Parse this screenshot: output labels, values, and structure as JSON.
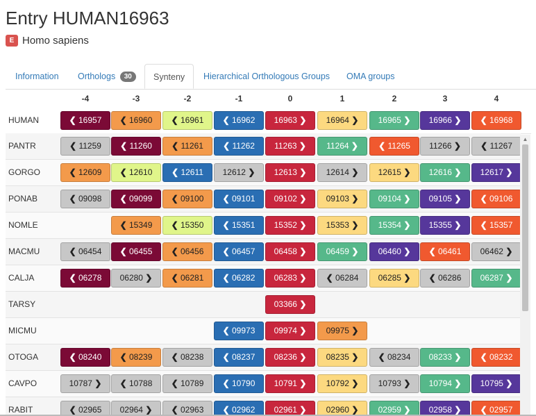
{
  "entry": {
    "title": "Entry HUMAN16963",
    "species_badge": "E",
    "species": "Homo sapiens"
  },
  "tabs": [
    {
      "label": "Information"
    },
    {
      "label": "Orthologs",
      "count": "30"
    },
    {
      "label": "Synteny"
    },
    {
      "label": "Hierarchical Orthologous Groups"
    },
    {
      "label": "OMA groups"
    }
  ],
  "columns": [
    "-4",
    "-3",
    "-2",
    "-1",
    "0",
    "1",
    "2",
    "3",
    "4"
  ],
  "icons": {
    "left": "chevron-left-icon",
    "right": "chevron-right-icon"
  },
  "colors": {
    "wine": "#7b0a36",
    "orange": "#f39a4b",
    "lime": "#e0f58a",
    "blue": "#2a6eb3",
    "red": "#c8263d",
    "yellow": "#fcd980",
    "green": "#56b88a",
    "purple": "#56379b",
    "vermil": "#f0592f",
    "gray": "#c7c7c7"
  },
  "rows": [
    {
      "species": "HUMAN",
      "genes": [
        {
          "label": "16957",
          "dir": "L",
          "color": "wine"
        },
        {
          "label": "16960",
          "dir": "L",
          "color": "orange"
        },
        {
          "label": "16961",
          "dir": "L",
          "color": "lime"
        },
        {
          "label": "16962",
          "dir": "L",
          "color": "blue"
        },
        {
          "label": "16963",
          "dir": "R",
          "color": "red"
        },
        {
          "label": "16964",
          "dir": "R",
          "color": "yellow"
        },
        {
          "label": "16965",
          "dir": "R",
          "color": "green"
        },
        {
          "label": "16966",
          "dir": "R",
          "color": "purple"
        },
        {
          "label": "16968",
          "dir": "L",
          "color": "vermil"
        }
      ]
    },
    {
      "species": "PANTR",
      "genes": [
        {
          "label": "11259",
          "dir": "L",
          "color": "gray"
        },
        {
          "label": "11260",
          "dir": "L",
          "color": "wine"
        },
        {
          "label": "11261",
          "dir": "L",
          "color": "orange"
        },
        {
          "label": "11262",
          "dir": "L",
          "color": "blue"
        },
        {
          "label": "11263",
          "dir": "R",
          "color": "red"
        },
        {
          "label": "11264",
          "dir": "R",
          "color": "green"
        },
        {
          "label": "11265",
          "dir": "L",
          "color": "vermil"
        },
        {
          "label": "11266",
          "dir": "R",
          "color": "gray"
        },
        {
          "label": "11267",
          "dir": "L",
          "color": "gray"
        }
      ]
    },
    {
      "species": "GORGO",
      "genes": [
        {
          "label": "12609",
          "dir": "L",
          "color": "orange"
        },
        {
          "label": "12610",
          "dir": "L",
          "color": "lime"
        },
        {
          "label": "12611",
          "dir": "L",
          "color": "blue"
        },
        {
          "label": "12612",
          "dir": "R",
          "color": "gray"
        },
        {
          "label": "12613",
          "dir": "R",
          "color": "red"
        },
        {
          "label": "12614",
          "dir": "R",
          "color": "gray"
        },
        {
          "label": "12615",
          "dir": "R",
          "color": "yellow"
        },
        {
          "label": "12616",
          "dir": "R",
          "color": "green"
        },
        {
          "label": "12617",
          "dir": "R",
          "color": "purple"
        }
      ]
    },
    {
      "species": "PONAB",
      "genes": [
        {
          "label": "09098",
          "dir": "L",
          "color": "gray"
        },
        {
          "label": "09099",
          "dir": "L",
          "color": "wine"
        },
        {
          "label": "09100",
          "dir": "L",
          "color": "orange"
        },
        {
          "label": "09101",
          "dir": "L",
          "color": "blue"
        },
        {
          "label": "09102",
          "dir": "R",
          "color": "red"
        },
        {
          "label": "09103",
          "dir": "R",
          "color": "yellow"
        },
        {
          "label": "09104",
          "dir": "R",
          "color": "green"
        },
        {
          "label": "09105",
          "dir": "R",
          "color": "purple"
        },
        {
          "label": "09106",
          "dir": "L",
          "color": "vermil"
        }
      ]
    },
    {
      "species": "NOMLE",
      "genes": [
        null,
        {
          "label": "15349",
          "dir": "L",
          "color": "orange"
        },
        {
          "label": "15350",
          "dir": "L",
          "color": "lime"
        },
        {
          "label": "15351",
          "dir": "L",
          "color": "blue"
        },
        {
          "label": "15352",
          "dir": "R",
          "color": "red"
        },
        {
          "label": "15353",
          "dir": "R",
          "color": "yellow"
        },
        {
          "label": "15354",
          "dir": "R",
          "color": "green"
        },
        {
          "label": "15355",
          "dir": "R",
          "color": "purple"
        },
        {
          "label": "15357",
          "dir": "L",
          "color": "vermil"
        }
      ]
    },
    {
      "species": "MACMU",
      "genes": [
        {
          "label": "06454",
          "dir": "L",
          "color": "gray"
        },
        {
          "label": "06455",
          "dir": "L",
          "color": "wine"
        },
        {
          "label": "06456",
          "dir": "L",
          "color": "orange"
        },
        {
          "label": "06457",
          "dir": "L",
          "color": "blue"
        },
        {
          "label": "06458",
          "dir": "R",
          "color": "red"
        },
        {
          "label": "06459",
          "dir": "R",
          "color": "green"
        },
        {
          "label": "06460",
          "dir": "R",
          "color": "purple"
        },
        {
          "label": "06461",
          "dir": "L",
          "color": "vermil"
        },
        {
          "label": "06462",
          "dir": "R",
          "color": "gray"
        }
      ]
    },
    {
      "species": "CALJA",
      "genes": [
        {
          "label": "06278",
          "dir": "L",
          "color": "wine"
        },
        {
          "label": "06280",
          "dir": "R",
          "color": "gray"
        },
        {
          "label": "06281",
          "dir": "L",
          "color": "orange"
        },
        {
          "label": "06282",
          "dir": "L",
          "color": "blue"
        },
        {
          "label": "06283",
          "dir": "R",
          "color": "red"
        },
        {
          "label": "06284",
          "dir": "L",
          "color": "gray"
        },
        {
          "label": "06285",
          "dir": "R",
          "color": "yellow"
        },
        {
          "label": "06286",
          "dir": "L",
          "color": "gray"
        },
        {
          "label": "06287",
          "dir": "R",
          "color": "green"
        }
      ]
    },
    {
      "species": "TARSY",
      "genes": [
        null,
        null,
        null,
        null,
        {
          "label": "03366",
          "dir": "R",
          "color": "red"
        },
        null,
        null,
        null,
        null
      ]
    },
    {
      "species": "MICMU",
      "genes": [
        null,
        null,
        null,
        {
          "label": "09973",
          "dir": "L",
          "color": "blue"
        },
        {
          "label": "09974",
          "dir": "R",
          "color": "red"
        },
        {
          "label": "09975",
          "dir": "R",
          "color": "orange"
        },
        null,
        null,
        null
      ]
    },
    {
      "species": "OTOGA",
      "genes": [
        {
          "label": "08240",
          "dir": "L",
          "color": "wine"
        },
        {
          "label": "08239",
          "dir": "L",
          "color": "orange"
        },
        {
          "label": "08238",
          "dir": "L",
          "color": "gray"
        },
        {
          "label": "08237",
          "dir": "L",
          "color": "blue"
        },
        {
          "label": "08236",
          "dir": "R",
          "color": "red"
        },
        {
          "label": "08235",
          "dir": "R",
          "color": "yellow"
        },
        {
          "label": "08234",
          "dir": "L",
          "color": "gray"
        },
        {
          "label": "08233",
          "dir": "R",
          "color": "green"
        },
        {
          "label": "08232",
          "dir": "L",
          "color": "vermil"
        }
      ]
    },
    {
      "species": "CAVPO",
      "genes": [
        {
          "label": "10787",
          "dir": "R",
          "color": "gray"
        },
        {
          "label": "10788",
          "dir": "L",
          "color": "gray"
        },
        {
          "label": "10789",
          "dir": "L",
          "color": "gray"
        },
        {
          "label": "10790",
          "dir": "L",
          "color": "blue"
        },
        {
          "label": "10791",
          "dir": "R",
          "color": "red"
        },
        {
          "label": "10792",
          "dir": "R",
          "color": "yellow"
        },
        {
          "label": "10793",
          "dir": "R",
          "color": "gray"
        },
        {
          "label": "10794",
          "dir": "R",
          "color": "green"
        },
        {
          "label": "10795",
          "dir": "R",
          "color": "purple"
        }
      ]
    },
    {
      "species": "RABIT",
      "genes": [
        {
          "label": "02965",
          "dir": "L",
          "color": "gray"
        },
        {
          "label": "02964",
          "dir": "R",
          "color": "gray"
        },
        {
          "label": "02963",
          "dir": "L",
          "color": "gray"
        },
        {
          "label": "02962",
          "dir": "L",
          "color": "blue"
        },
        {
          "label": "02961",
          "dir": "R",
          "color": "red"
        },
        {
          "label": "02960",
          "dir": "R",
          "color": "yellow"
        },
        {
          "label": "02959",
          "dir": "R",
          "color": "green"
        },
        {
          "label": "02958",
          "dir": "R",
          "color": "purple"
        },
        {
          "label": "02957",
          "dir": "L",
          "color": "vermil"
        }
      ]
    }
  ]
}
